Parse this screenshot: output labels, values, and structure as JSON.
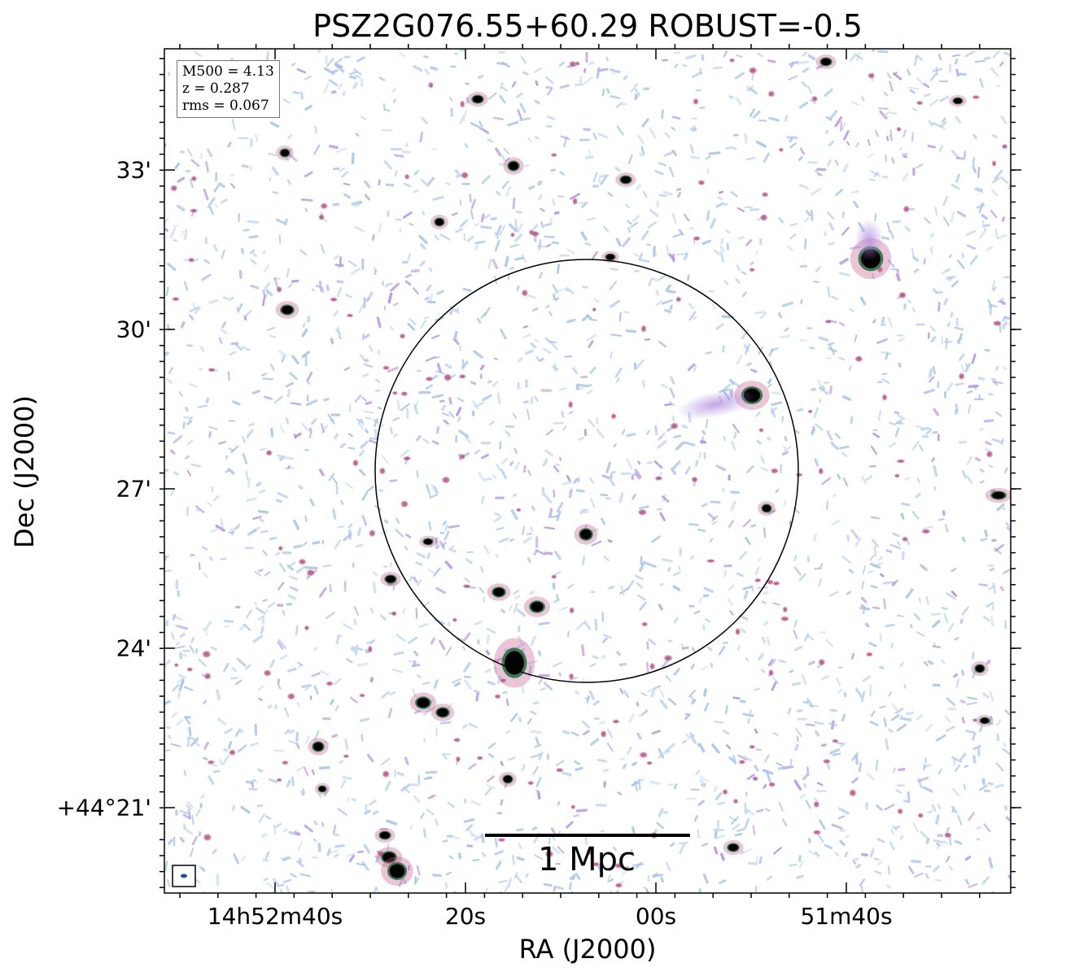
{
  "figure": {
    "title": "PSZ2G076.55+60.29 ROBUST=-0.5",
    "xlabel": "RA (J2000)",
    "ylabel": "Dec (J2000)",
    "x_ticks": [
      "14h52m40s",
      "20s",
      "00s",
      "51m40s"
    ],
    "y_ticks": [
      "33'",
      "30'",
      "27'",
      "24'",
      "+44°21'"
    ],
    "info": {
      "m500": "M500 = 4.13",
      "z": "z = 0.287",
      "rms": "rms = 0.067"
    },
    "scalebar_label": "1 Mpc",
    "colors": {
      "noise_blue": "#a9c3ea",
      "noise_violet": "#b38fe0",
      "source_pink": "#c25a8c",
      "source_green": "#1f6b3a",
      "source_core": "#000000"
    }
  }
}
